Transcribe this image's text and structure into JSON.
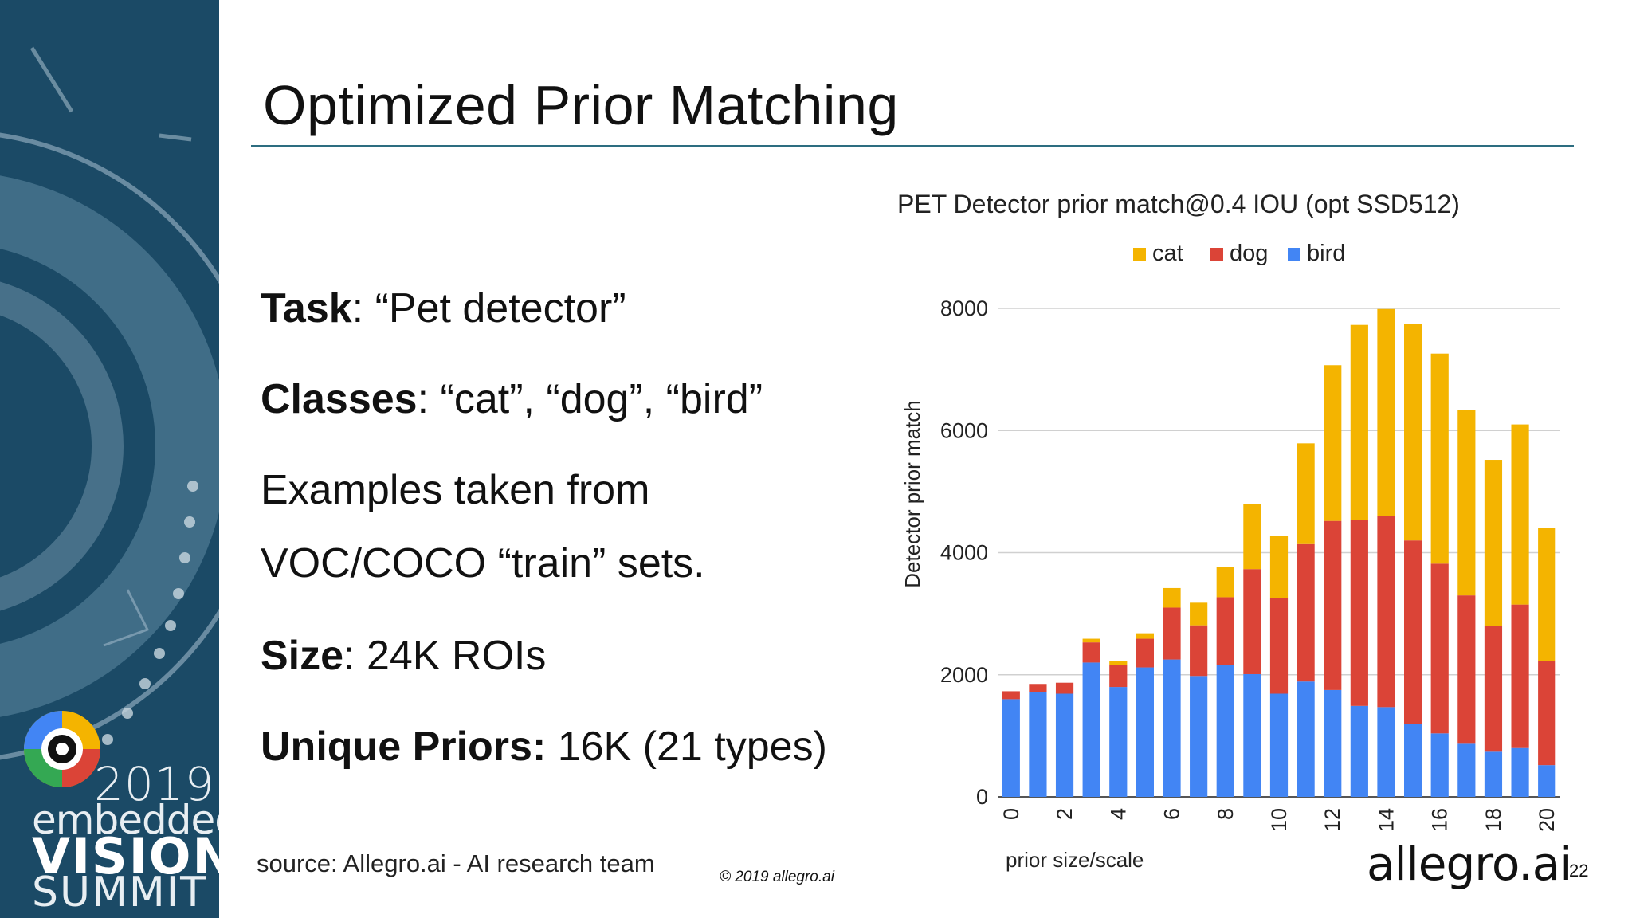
{
  "slide": {
    "title": "Optimized Prior Matching",
    "page_number": "22"
  },
  "bullets": {
    "task_label": "Task",
    "task_value": ": “Pet detector”",
    "classes_label": "Classes",
    "classes_value": ": “cat”, “dog”, “bird”",
    "examples_line1": "Examples taken from",
    "examples_line2": "VOC/COCO “train” sets.",
    "size_label": "Size",
    "size_value": ": 24K ROIs",
    "priors_label": "Unique Priors:",
    "priors_value": " 16K (21 types)"
  },
  "footer": {
    "source": "source: Allegro.ai - AI research team",
    "copyright": "© 2019 allegro.ai",
    "brand": "allegro.ai"
  },
  "event_logo": {
    "year": "2019",
    "line1": "embedded",
    "line2": "VISION",
    "line3": "SUMMIT"
  },
  "colors": {
    "sidebar": "#1b4a66",
    "cat": "#f4b400",
    "dog": "#db4437",
    "bird": "#4285f4",
    "title_rule": "#2d6d80"
  },
  "chart_data": {
    "type": "bar",
    "stacked": true,
    "title": "PET Detector prior match@0.4 IOU (opt SSD512)",
    "xlabel": "prior size/scale",
    "ylabel": "Detector prior match",
    "x": [
      0,
      1,
      2,
      3,
      4,
      5,
      6,
      7,
      8,
      9,
      10,
      11,
      12,
      13,
      14,
      15,
      16,
      17,
      18,
      19,
      20
    ],
    "x_tick_labels": [
      "0",
      "2",
      "4",
      "6",
      "8",
      "10",
      "12",
      "14",
      "16",
      "18",
      "20"
    ],
    "ylim": [
      0,
      8000
    ],
    "y_ticks": [
      0,
      2000,
      4000,
      6000,
      8000
    ],
    "grid": true,
    "legend_position": "top",
    "series": [
      {
        "name": "bird",
        "color": "#4285f4",
        "values": [
          1600,
          1720,
          1690,
          2200,
          1800,
          2120,
          2250,
          1980,
          2160,
          2010,
          1690,
          1890,
          1750,
          1490,
          1470,
          1200,
          1040,
          870,
          740,
          800,
          520
        ]
      },
      {
        "name": "dog",
        "color": "#db4437",
        "values": [
          130,
          130,
          180,
          330,
          360,
          470,
          850,
          830,
          1110,
          1720,
          1570,
          2250,
          2770,
          3050,
          3130,
          3000,
          2780,
          2430,
          2060,
          2350,
          1710
        ]
      },
      {
        "name": "cat",
        "color": "#f4b400",
        "values": [
          0,
          0,
          0,
          60,
          60,
          90,
          320,
          370,
          500,
          1060,
          1010,
          1650,
          2550,
          3190,
          3390,
          3540,
          3440,
          3030,
          2720,
          2950,
          2170
        ]
      }
    ],
    "legend_order": [
      "cat",
      "dog",
      "bird"
    ]
  }
}
